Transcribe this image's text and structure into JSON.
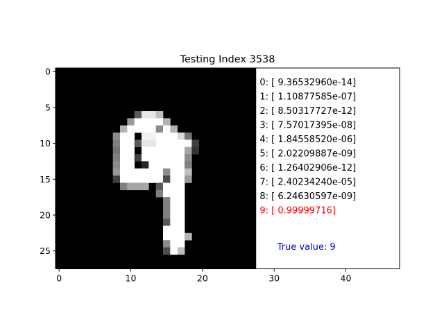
{
  "chart_data": {
    "type": "heatmap",
    "title": "Testing Index 3538",
    "xlabel": "",
    "ylabel": "",
    "xlim": [
      -0.5,
      47.5
    ],
    "ylim": [
      27.5,
      -0.5
    ],
    "grid": false,
    "x_ticks": [
      0,
      10,
      20,
      30,
      40
    ],
    "y_ticks": [
      0,
      5,
      10,
      15,
      20,
      25
    ],
    "colormap": "gray",
    "background_color": "#000000",
    "panel_color": "#ffffff",
    "image_size": [
      28,
      28
    ],
    "pixel_runs": [
      {
        "row": 6,
        "segments": [
          [
            11,
            11,
            0.35
          ],
          [
            12,
            13,
            0.9
          ],
          [
            14,
            14,
            0.75
          ]
        ]
      },
      {
        "row": 7,
        "segments": [
          [
            10,
            10,
            0.6
          ],
          [
            11,
            14,
            1.0
          ],
          [
            15,
            15,
            0.7
          ]
        ]
      },
      {
        "row": 8,
        "segments": [
          [
            9,
            9,
            0.7
          ],
          [
            10,
            13,
            1.0
          ],
          [
            14,
            14,
            0.55
          ],
          [
            15,
            15,
            1.0
          ],
          [
            16,
            16,
            0.7
          ]
        ]
      },
      {
        "row": 9,
        "segments": [
          [
            8,
            8,
            0.55
          ],
          [
            9,
            10,
            1.0
          ],
          [
            12,
            13,
            0.95
          ],
          [
            14,
            16,
            1.0
          ],
          [
            17,
            17,
            0.85
          ],
          [
            18,
            18,
            0.45
          ]
        ]
      },
      {
        "row": 10,
        "segments": [
          [
            8,
            8,
            0.5
          ],
          [
            9,
            10,
            1.0
          ],
          [
            11,
            11,
            0.35
          ],
          [
            12,
            13,
            0.9
          ],
          [
            14,
            18,
            1.0
          ],
          [
            19,
            19,
            0.25
          ]
        ]
      },
      {
        "row": 11,
        "segments": [
          [
            8,
            8,
            0.45
          ],
          [
            9,
            10,
            1.0
          ],
          [
            12,
            13,
            1.0
          ],
          [
            14,
            17,
            1.0
          ],
          [
            18,
            18,
            0.65
          ],
          [
            19,
            19,
            0.2
          ]
        ]
      },
      {
        "row": 12,
        "segments": [
          [
            8,
            8,
            0.5
          ],
          [
            9,
            10,
            1.0
          ],
          [
            11,
            11,
            0.25
          ],
          [
            12,
            17,
            1.0
          ],
          [
            18,
            18,
            0.55
          ]
        ]
      },
      {
        "row": 13,
        "segments": [
          [
            8,
            8,
            0.55
          ],
          [
            9,
            10,
            1.0
          ],
          [
            12,
            12,
            0.15
          ],
          [
            13,
            17,
            1.0
          ],
          [
            18,
            18,
            0.5
          ]
        ]
      },
      {
        "row": 14,
        "segments": [
          [
            8,
            8,
            0.6
          ],
          [
            9,
            14,
            1.0
          ],
          [
            15,
            15,
            0.55
          ],
          [
            16,
            17,
            1.0
          ],
          [
            18,
            18,
            0.75
          ]
        ]
      },
      {
        "row": 15,
        "segments": [
          [
            8,
            8,
            0.25
          ],
          [
            9,
            14,
            1.0
          ],
          [
            15,
            15,
            0.3
          ],
          [
            16,
            17,
            1.0
          ],
          [
            18,
            18,
            0.6
          ]
        ]
      },
      {
        "row": 16,
        "segments": [
          [
            9,
            9,
            0.5
          ],
          [
            10,
            12,
            0.65
          ],
          [
            14,
            14,
            0.35
          ],
          [
            15,
            17,
            1.0
          ]
        ]
      },
      {
        "row": 17,
        "segments": [
          [
            14,
            14,
            0.5
          ],
          [
            15,
            17,
            1.0
          ]
        ]
      },
      {
        "row": 18,
        "segments": [
          [
            15,
            15,
            0.5
          ],
          [
            16,
            17,
            1.0
          ]
        ]
      },
      {
        "row": 19,
        "segments": [
          [
            15,
            15,
            0.5
          ],
          [
            16,
            17,
            1.0
          ]
        ]
      },
      {
        "row": 20,
        "segments": [
          [
            15,
            15,
            0.5
          ],
          [
            16,
            17,
            1.0
          ]
        ]
      },
      {
        "row": 21,
        "segments": [
          [
            15,
            15,
            0.35
          ],
          [
            16,
            17,
            1.0
          ]
        ]
      },
      {
        "row": 22,
        "segments": [
          [
            15,
            17,
            1.0
          ]
        ]
      },
      {
        "row": 23,
        "segments": [
          [
            15,
            17,
            1.0
          ],
          [
            18,
            18,
            0.7
          ]
        ]
      },
      {
        "row": 24,
        "segments": [
          [
            15,
            15,
            0.55
          ],
          [
            16,
            17,
            1.0
          ]
        ]
      },
      {
        "row": 25,
        "segments": [
          [
            15,
            15,
            0.3
          ],
          [
            16,
            16,
            1.0
          ],
          [
            17,
            17,
            0.75
          ]
        ]
      }
    ],
    "predictions": [
      {
        "label": "0: [  9.36532960e-14]",
        "highlight": false
      },
      {
        "label": "1: [  1.10877585e-07]",
        "highlight": false
      },
      {
        "label": "2: [  8.50317727e-12]",
        "highlight": false
      },
      {
        "label": "3: [  7.57017395e-08]",
        "highlight": false
      },
      {
        "label": "4: [  1.84558520e-06]",
        "highlight": false
      },
      {
        "label": "5: [  2.02209887e-09]",
        "highlight": false
      },
      {
        "label": "6: [  1.26402906e-12]",
        "highlight": false
      },
      {
        "label": "7: [  2.40234240e-05]",
        "highlight": false
      },
      {
        "label": "8: [  6.24630597e-09]",
        "highlight": false
      },
      {
        "label": "9: [ 0.99999716]",
        "highlight": true
      }
    ],
    "prediction_color": "#000000",
    "highlight_color": "#ff0000",
    "true_value": "True value: 9",
    "true_value_color": "#0000cc"
  }
}
